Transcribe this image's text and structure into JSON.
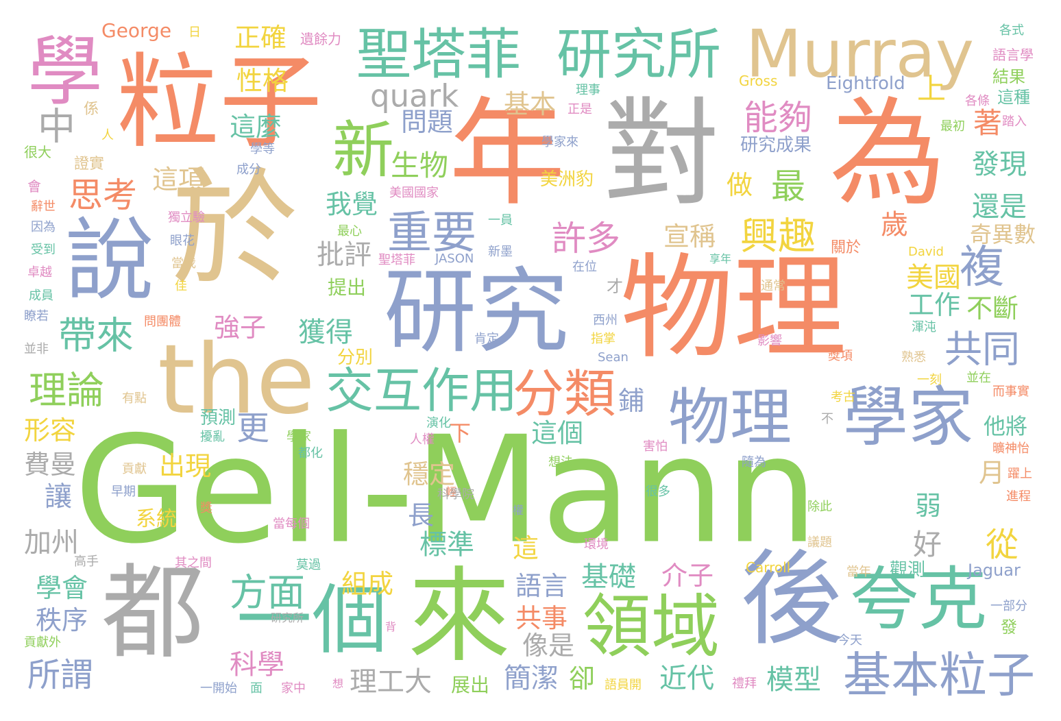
{
  "palette": {
    "green": "#8FCF5B",
    "orange": "#F48B66",
    "tan": "#E0C48F",
    "gray": "#ABABAB",
    "blue": "#8EA0CB",
    "teal": "#66C2A5",
    "pink": "#E08BC2",
    "yellow": "#F2D43F"
  },
  "words": [
    {
      "text": "Gell-Mann",
      "color": "#8FCF5B"
    },
    {
      "text": "粒子",
      "color": "#F48B66"
    },
    {
      "text": "於",
      "color": "#E0C48F"
    },
    {
      "text": "年",
      "color": "#F48B66"
    },
    {
      "text": "對",
      "color": "#ABABAB"
    },
    {
      "text": "為",
      "color": "#F48B66"
    },
    {
      "text": "物理",
      "color": "#F48B66"
    },
    {
      "text": "研究",
      "color": "#8EA0CB"
    },
    {
      "text": "the",
      "color": "#E0C48F"
    },
    {
      "text": "都",
      "color": "#ABABAB"
    },
    {
      "text": "來",
      "color": "#8FCF5B"
    },
    {
      "text": "後",
      "color": "#8EA0CB"
    },
    {
      "text": "說",
      "color": "#8EA0CB"
    },
    {
      "text": "學",
      "color": "#E08BC2"
    },
    {
      "text": "Murray",
      "color": "#E0C48F"
    },
    {
      "text": "聖塔菲",
      "color": "#66C2A5"
    },
    {
      "text": "研究所",
      "color": "#66C2A5"
    },
    {
      "text": "一個",
      "color": "#66C2A5"
    },
    {
      "text": "領域",
      "color": "#8FCF5B"
    },
    {
      "text": "夸克",
      "color": "#66C2A5"
    },
    {
      "text": "學家",
      "color": "#8EA0CB"
    },
    {
      "text": "物理",
      "color": "#8EA0CB"
    },
    {
      "text": "新",
      "color": "#8FCF5B"
    },
    {
      "text": "quark",
      "color": "#ABABAB"
    },
    {
      "text": "中",
      "color": "#ABABAB"
    },
    {
      "text": "重要",
      "color": "#8EA0CB"
    },
    {
      "text": "分類",
      "color": "#F48B66"
    },
    {
      "text": "交互作用",
      "color": "#66C2A5"
    },
    {
      "text": "基本粒子",
      "color": "#8EA0CB"
    },
    {
      "text": "帶來",
      "color": "#66C2A5"
    },
    {
      "text": "理論",
      "color": "#8FCF5B"
    },
    {
      "text": "思考",
      "color": "#F48B66"
    },
    {
      "text": "方面",
      "color": "#66C2A5"
    },
    {
      "text": "能夠",
      "color": "#E08BC2"
    },
    {
      "text": "興趣",
      "color": "#F2D43F"
    },
    {
      "text": "最",
      "color": "#8FCF5B"
    },
    {
      "text": "許多",
      "color": "#E08BC2"
    },
    {
      "text": "共同",
      "color": "#8EA0CB"
    },
    {
      "text": "複",
      "color": "#8EA0CB"
    },
    {
      "text": "生物",
      "color": "#8FCF5B"
    },
    {
      "text": "正確",
      "color": "#F2D43F"
    },
    {
      "text": "性格",
      "color": "#F2D43F"
    },
    {
      "text": "這麼",
      "color": "#66C2A5"
    },
    {
      "text": "這項",
      "color": "#E0C48F"
    },
    {
      "text": "問題",
      "color": "#8EA0CB"
    },
    {
      "text": "基本",
      "color": "#E0C48F"
    },
    {
      "text": "研究成果",
      "color": "#8EA0CB"
    },
    {
      "text": "George",
      "color": "#F48B66"
    },
    {
      "text": "Eightfold",
      "color": "#8EA0CB"
    },
    {
      "text": "Gross",
      "color": "#F2D43F"
    },
    {
      "text": "上",
      "color": "#F2D43F"
    },
    {
      "text": "著",
      "color": "#F48B66"
    },
    {
      "text": "發現",
      "color": "#66C2A5"
    },
    {
      "text": "還是",
      "color": "#66C2A5"
    },
    {
      "text": "奇異數",
      "color": "#E0C48F"
    },
    {
      "text": "我覺",
      "color": "#66C2A5"
    },
    {
      "text": "批評",
      "color": "#ABABAB"
    },
    {
      "text": "宣稱",
      "color": "#E0C48F"
    },
    {
      "text": "歲",
      "color": "#F48B66"
    },
    {
      "text": "做",
      "color": "#F2D43F"
    },
    {
      "text": "美國",
      "color": "#F2D43F"
    },
    {
      "text": "工作",
      "color": "#66C2A5"
    },
    {
      "text": "不斷",
      "color": "#8FCF5B"
    },
    {
      "text": "獲得",
      "color": "#66C2A5"
    },
    {
      "text": "強子",
      "color": "#E08BC2"
    },
    {
      "text": "更",
      "color": "#8EA0CB"
    },
    {
      "text": "出現",
      "color": "#F2D43F"
    },
    {
      "text": "形容",
      "color": "#F2D43F"
    },
    {
      "text": "費曼",
      "color": "#ABABAB"
    },
    {
      "text": "讓",
      "color": "#8EA0CB"
    },
    {
      "text": "加州",
      "color": "#ABABAB"
    },
    {
      "text": "學會",
      "color": "#66C2A5"
    },
    {
      "text": "秩序",
      "color": "#8EA0CB"
    },
    {
      "text": "所謂",
      "color": "#8EA0CB"
    },
    {
      "text": "科學",
      "color": "#E08BC2"
    },
    {
      "text": "理工大",
      "color": "#ABABAB"
    },
    {
      "text": "簡潔",
      "color": "#8EA0CB"
    },
    {
      "text": "卻",
      "color": "#8FCF5B"
    },
    {
      "text": "近代",
      "color": "#66C2A5"
    },
    {
      "text": "模型",
      "color": "#66C2A5"
    },
    {
      "text": "組成",
      "color": "#F2D43F"
    },
    {
      "text": "標準",
      "color": "#66C2A5"
    },
    {
      "text": "穩定",
      "color": "#E0C48F"
    },
    {
      "text": "這個",
      "color": "#66C2A5"
    },
    {
      "text": "語言",
      "color": "#8EA0CB"
    },
    {
      "text": "共事",
      "color": "#F48B66"
    },
    {
      "text": "像是",
      "color": "#ABABAB"
    },
    {
      "text": "基礎",
      "color": "#66C2A5"
    },
    {
      "text": "介子",
      "color": "#E08BC2"
    },
    {
      "text": "從",
      "color": "#F2D43F"
    },
    {
      "text": "好",
      "color": "#ABABAB"
    },
    {
      "text": "弱",
      "color": "#66C2A5"
    },
    {
      "text": "月",
      "color": "#E0C48F"
    },
    {
      "text": "他將",
      "color": "#66C2A5"
    },
    {
      "text": "系統",
      "color": "#F2D43F"
    },
    {
      "text": "長",
      "color": "#8EA0CB"
    },
    {
      "text": "鋪",
      "color": "#8EA0CB"
    },
    {
      "text": "下",
      "color": "#F48B66"
    },
    {
      "text": "這",
      "color": "#F2D43F"
    },
    {
      "text": "觀測",
      "color": "#66C2A5"
    },
    {
      "text": "Jaguar",
      "color": "#8EA0CB"
    },
    {
      "text": "Carroll",
      "color": "#F2D43F"
    },
    {
      "text": "展出",
      "color": "#8FCF5B"
    },
    {
      "text": "預測",
      "color": "#66C2A5"
    },
    {
      "text": "分別",
      "color": "#F2D43F"
    },
    {
      "text": "提出",
      "color": "#8FCF5B"
    },
    {
      "text": "美洲豹",
      "color": "#F2D43F"
    },
    {
      "text": "遺餘力",
      "color": "#E08BC2"
    },
    {
      "text": "各式",
      "color": "#66C2A5"
    },
    {
      "text": "語言學",
      "color": "#E08BC2"
    },
    {
      "text": "結果",
      "color": "#8FCF5B"
    },
    {
      "text": "這種",
      "color": "#66C2A5"
    },
    {
      "text": "各條",
      "color": "#E08BC2"
    },
    {
      "text": "踏入",
      "color": "#E08BC2"
    },
    {
      "text": "最初",
      "color": "#8FCF5B"
    },
    {
      "text": "理事",
      "color": "#66C2A5"
    },
    {
      "text": "正是",
      "color": "#E08BC2"
    },
    {
      "text": "學家來",
      "color": "#8EA0CB"
    },
    {
      "text": "係",
      "color": "#E0C48F"
    },
    {
      "text": "人",
      "color": "#F2D43F"
    },
    {
      "text": "很大",
      "color": "#8FCF5B"
    },
    {
      "text": "學等",
      "color": "#8EA0CB"
    },
    {
      "text": "證實",
      "color": "#E0C48F"
    },
    {
      "text": "成分",
      "color": "#8EA0CB"
    },
    {
      "text": "會",
      "color": "#E08BC2"
    },
    {
      "text": "美國國家",
      "color": "#E08BC2"
    },
    {
      "text": "辭世",
      "color": "#F48B66"
    },
    {
      "text": "獨立驗",
      "color": "#E08BC2"
    },
    {
      "text": "因為",
      "color": "#8EA0CB"
    },
    {
      "text": "最心",
      "color": "#8FCF5B"
    },
    {
      "text": "一員",
      "color": "#66C2A5"
    },
    {
      "text": "受到",
      "color": "#66C2A5"
    },
    {
      "text": "眼花",
      "color": "#8EA0CB"
    },
    {
      "text": "新墨",
      "color": "#8EA0CB"
    },
    {
      "text": "JASON",
      "color": "#8EA0CB"
    },
    {
      "text": "聖塔菲",
      "color": "#E08BC2"
    },
    {
      "text": "卓越",
      "color": "#E08BC2"
    },
    {
      "text": "當我",
      "color": "#E0C48F"
    },
    {
      "text": "在位",
      "color": "#8EA0CB"
    },
    {
      "text": "享年",
      "color": "#66C2A5"
    },
    {
      "text": "David",
      "color": "#F2D43F"
    },
    {
      "text": "關於",
      "color": "#F48B66"
    },
    {
      "text": "成員",
      "color": "#66C2A5"
    },
    {
      "text": "佳",
      "color": "#F2D43F"
    },
    {
      "text": "才",
      "color": "#ABABAB"
    },
    {
      "text": "通常",
      "color": "#E0C48F"
    },
    {
      "text": "瞭若",
      "color": "#8EA0CB"
    },
    {
      "text": "問團體",
      "color": "#F48B66"
    },
    {
      "text": "西州",
      "color": "#8EA0CB"
    },
    {
      "text": "渾沌",
      "color": "#66C2A5"
    },
    {
      "text": "並非",
      "color": "#ABABAB"
    },
    {
      "text": "肯定",
      "color": "#8EA0CB"
    },
    {
      "text": "指掌",
      "color": "#F2D43F"
    },
    {
      "text": "影響",
      "color": "#E08BC2"
    },
    {
      "text": "熟悉",
      "color": "#E0C48F"
    },
    {
      "text": "Sean",
      "color": "#8EA0CB"
    },
    {
      "text": "獎項",
      "color": "#F48B66"
    },
    {
      "text": "一刻",
      "color": "#F2D43F"
    },
    {
      "text": "並在",
      "color": "#8FCF5B"
    },
    {
      "text": "有點",
      "color": "#E0C48F"
    },
    {
      "text": "而事實",
      "color": "#F48B66"
    },
    {
      "text": "考古",
      "color": "#F2D43F"
    },
    {
      "text": "人權",
      "color": "#E08BC2"
    },
    {
      "text": "演化",
      "color": "#66C2A5"
    },
    {
      "text": "不",
      "color": "#ABABAB"
    },
    {
      "text": "曠神怡",
      "color": "#F48B66"
    },
    {
      "text": "擾亂",
      "color": "#66C2A5"
    },
    {
      "text": "學家",
      "color": "#8FCF5B"
    },
    {
      "text": "都化",
      "color": "#66C2A5"
    },
    {
      "text": "害怕",
      "color": "#E08BC2"
    },
    {
      "text": "想法",
      "color": "#8FCF5B"
    },
    {
      "text": "貢獻",
      "color": "#E0C48F"
    },
    {
      "text": "隨為",
      "color": "#8EA0CB"
    },
    {
      "text": "躍上",
      "color": "#F48B66"
    },
    {
      "text": "早期",
      "color": "#8EA0CB"
    },
    {
      "text": "輕",
      "color": "#F48B66"
    },
    {
      "text": "科學院",
      "color": "#ABABAB"
    },
    {
      "text": "很多",
      "color": "#66C2A5"
    },
    {
      "text": "進程",
      "color": "#F48B66"
    },
    {
      "text": "獎",
      "color": "#F48B66"
    },
    {
      "text": "權",
      "color": "#8EA0CB"
    },
    {
      "text": "除此",
      "color": "#8FCF5B"
    },
    {
      "text": "當每個",
      "color": "#E08BC2"
    },
    {
      "text": "環境",
      "color": "#E08BC2"
    },
    {
      "text": "議題",
      "color": "#E0C48F"
    },
    {
      "text": "高手",
      "color": "#ABABAB"
    },
    {
      "text": "其之間",
      "color": "#E08BC2"
    },
    {
      "text": "莫過",
      "color": "#66C2A5"
    },
    {
      "text": "當年",
      "color": "#E0C48F"
    },
    {
      "text": "一部分",
      "color": "#8EA0CB"
    },
    {
      "text": "發",
      "color": "#8FCF5B"
    },
    {
      "text": "研究所",
      "color": "#ABABAB"
    },
    {
      "text": "貢獻外",
      "color": "#8FCF5B"
    },
    {
      "text": "背",
      "color": "#E08BC2"
    },
    {
      "text": "今天",
      "color": "#8EA0CB"
    },
    {
      "text": "想",
      "color": "#E08BC2"
    },
    {
      "text": "禮拜",
      "color": "#E08BC2"
    },
    {
      "text": "一開始",
      "color": "#8EA0CB"
    },
    {
      "text": "面",
      "color": "#66C2A5"
    },
    {
      "text": "家中",
      "color": "#E08BC2"
    },
    {
      "text": "語員開",
      "color": "#F2D43F"
    },
    {
      "text": "日",
      "color": "#F2D43F"
    }
  ]
}
